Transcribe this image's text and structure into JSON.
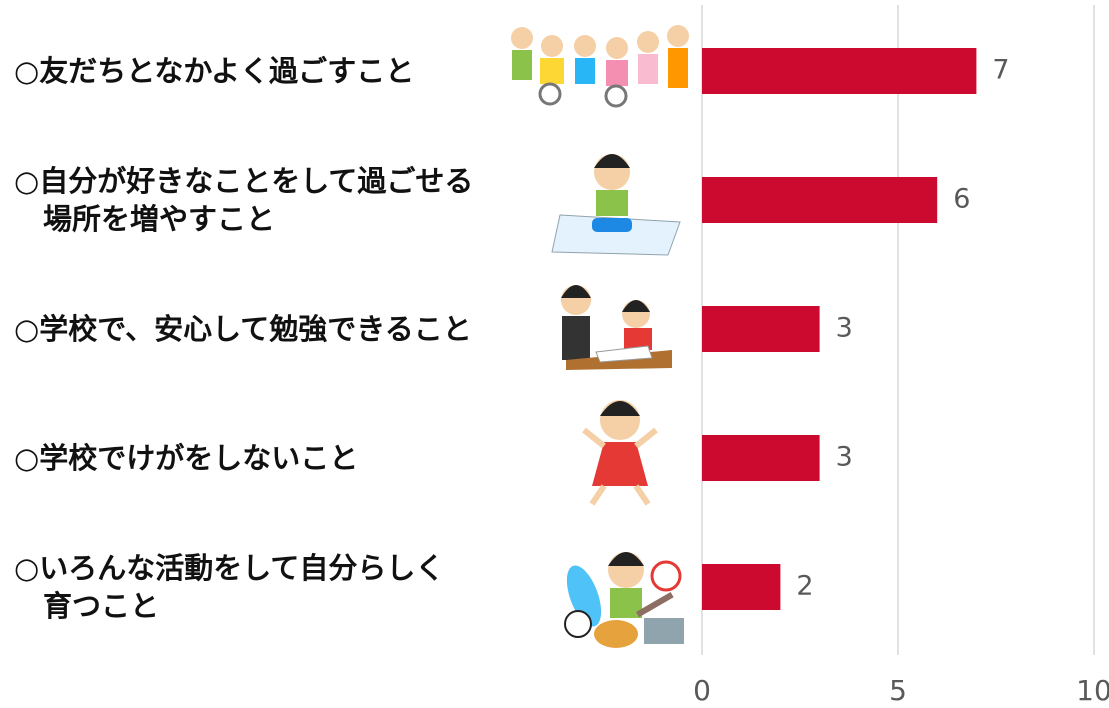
{
  "chart_data": {
    "type": "barh",
    "categories": [
      "○友だちとなかよく過ごすこと",
      "○自分が好きなことをして過ごせる\n場所を増やすこと",
      "○学校で、安心して勉強できること",
      "○学校でけがをしないこと",
      "○いろんな活動をして自分らしく\n育つこと"
    ],
    "values": [
      7,
      6,
      3,
      3,
      2
    ],
    "color": "#cc0a2f",
    "xlim": [
      0,
      10
    ],
    "xticks": [
      0,
      5,
      10
    ],
    "grid": true
  }
}
